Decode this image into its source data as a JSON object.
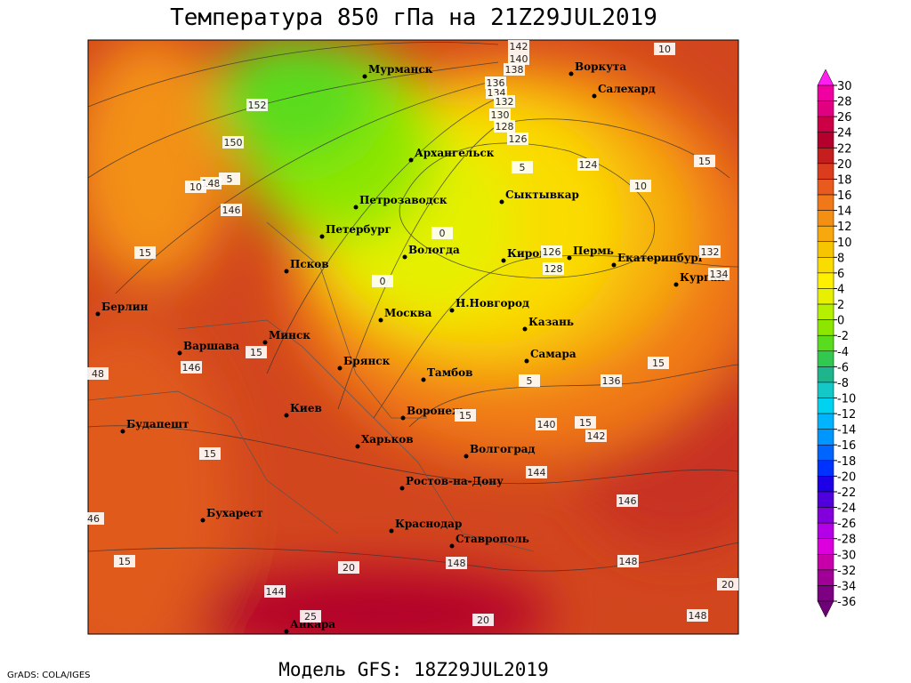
{
  "header": {
    "title": "Температура 850 гПа на 21Z29JUL2019"
  },
  "footer": {
    "credit": "GrADS: COLA/IGES",
    "model": "Модель GFS: 18Z29JUL2019"
  },
  "map": {
    "cities": [
      "Мурманск",
      "Воркута",
      "Салехард",
      "Архангельск",
      "Сыктывкар",
      "Петрозаводск",
      "Петербург",
      "Вологда",
      "Киров",
      "Пермь",
      "Екатеринбург",
      "Курган",
      "Псков",
      "Берлин",
      "Москва",
      "Н.Новгород",
      "Казань",
      "Минск",
      "Варшава",
      "Самара",
      "Брянск",
      "Тамбов",
      "Киев",
      "Воронеж",
      "Будапешт",
      "Харьков",
      "Волгоград",
      "Ростов-на-Дону",
      "Бухарест",
      "Краснодар",
      "Ставрополь",
      "Анкара"
    ],
    "height_labels": [
      152,
      150,
      148,
      146,
      142,
      140,
      138,
      136,
      134,
      132,
      130,
      128,
      126,
      124,
      126,
      128,
      132,
      134,
      146,
      48,
      136,
      140,
      142,
      144,
      146,
      148,
      148,
      144,
      148,
      46
    ],
    "temperature_labels": [
      10,
      15,
      10,
      5,
      10,
      5,
      15,
      0,
      0,
      15,
      5,
      15,
      15,
      15,
      15,
      20,
      25,
      20,
      15,
      20
    ]
  },
  "colorbar": {
    "labels": [
      30,
      28,
      26,
      24,
      22,
      20,
      18,
      16,
      14,
      12,
      10,
      8,
      6,
      4,
      2,
      0,
      -2,
      -4,
      -6,
      -8,
      -10,
      -12,
      -14,
      -16,
      -18,
      -20,
      -22,
      -24,
      -26,
      -28,
      -30,
      -32,
      -34,
      -36
    ],
    "colors": [
      "#ff1ef0",
      "#f000a0",
      "#e00080",
      "#cc0044",
      "#b4002c",
      "#c41e1e",
      "#dc3c1e",
      "#e85a1e",
      "#f07818",
      "#f39014",
      "#f7a80c",
      "#f7c400",
      "#fadc00",
      "#fff000",
      "#e6f000",
      "#b4f000",
      "#8ce600",
      "#5adc1e",
      "#32c850",
      "#1eb48c",
      "#14c8c8",
      "#00d2f0",
      "#00b4ff",
      "#0096ff",
      "#0064ff",
      "#0032ff",
      "#1e00e6",
      "#5000dc",
      "#8200dc",
      "#b400e6",
      "#dc00dc",
      "#c800aa",
      "#a00096",
      "#7d0082",
      "#6e0078"
    ]
  }
}
